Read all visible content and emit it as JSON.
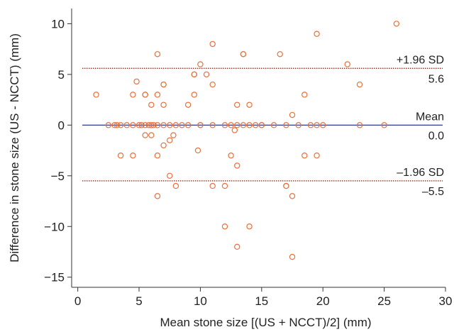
{
  "chart_data": {
    "type": "scatter",
    "xlabel": "Mean stone size [(US + NCCT)/2] (mm)",
    "ylabel": "Difference in stone size (US - NCCT) (mm)",
    "xlim": [
      -0.5,
      30
    ],
    "ylim": [
      -16,
      11.5
    ],
    "xticks": [
      0,
      5,
      10,
      15,
      20,
      25,
      30
    ],
    "yticks": [
      -15,
      -10,
      -5,
      0,
      5,
      10
    ],
    "grid": false,
    "marker": "open-circle",
    "colors": {
      "points": "#e8703a",
      "mean_line": "#2b3a8f",
      "sd_line": "#9b2d20",
      "axis": "#333333"
    },
    "reference_lines": [
      {
        "name": "upper",
        "y": 5.6,
        "label_top": "+1.96 SD",
        "label_bottom": "5.6",
        "color": "#9b2d20",
        "style": "dotted"
      },
      {
        "name": "mean",
        "y": 0.0,
        "label_top": "Mean",
        "label_bottom": "0.0",
        "color": "#2b3a8f",
        "style": "solid"
      },
      {
        "name": "lower",
        "y": -5.5,
        "label_top": "–1.96 SD",
        "label_bottom": "–5.5",
        "color": "#9b2d20",
        "style": "dotted"
      }
    ],
    "points": [
      [
        1.5,
        3
      ],
      [
        2.5,
        0
      ],
      [
        3,
        0
      ],
      [
        3.2,
        0
      ],
      [
        3.5,
        -3
      ],
      [
        3.5,
        0
      ],
      [
        4,
        0
      ],
      [
        4.5,
        3
      ],
      [
        4.5,
        -3
      ],
      [
        4.5,
        0
      ],
      [
        4.8,
        4.3
      ],
      [
        5,
        0
      ],
      [
        5.2,
        0
      ],
      [
        5.5,
        3
      ],
      [
        5.5,
        3
      ],
      [
        5.5,
        0
      ],
      [
        5.5,
        -1
      ],
      [
        5.8,
        0
      ],
      [
        6,
        2
      ],
      [
        6,
        0
      ],
      [
        6,
        -1
      ],
      [
        6.2,
        0
      ],
      [
        6.5,
        7
      ],
      [
        6.5,
        3
      ],
      [
        6.5,
        0
      ],
      [
        6.5,
        -3
      ],
      [
        6.5,
        -7
      ],
      [
        7,
        4
      ],
      [
        7,
        4
      ],
      [
        7,
        2
      ],
      [
        7,
        0
      ],
      [
        7,
        -2
      ],
      [
        7.5,
        0
      ],
      [
        7.5,
        -1.5
      ],
      [
        7.5,
        -5
      ],
      [
        7.8,
        -1
      ],
      [
        8,
        0
      ],
      [
        8,
        -6
      ],
      [
        8.5,
        0
      ],
      [
        9,
        0
      ],
      [
        9,
        2
      ],
      [
        9.5,
        5
      ],
      [
        9.5,
        5
      ],
      [
        9.5,
        3
      ],
      [
        9.8,
        -2.5
      ],
      [
        10,
        6
      ],
      [
        10,
        0
      ],
      [
        10,
        0
      ],
      [
        10.5,
        5
      ],
      [
        11,
        8
      ],
      [
        11,
        4
      ],
      [
        11,
        0
      ],
      [
        11,
        -6
      ],
      [
        12,
        0
      ],
      [
        12,
        -6
      ],
      [
        12,
        -10
      ],
      [
        12.5,
        0
      ],
      [
        12.5,
        -3
      ],
      [
        12.8,
        -0.5
      ],
      [
        13,
        2
      ],
      [
        13,
        0
      ],
      [
        13,
        -4
      ],
      [
        13,
        -12
      ],
      [
        13.5,
        7
      ],
      [
        13.5,
        7
      ],
      [
        13.5,
        0
      ],
      [
        14,
        2
      ],
      [
        14,
        0
      ],
      [
        14,
        -10
      ],
      [
        14.5,
        0
      ],
      [
        15,
        0
      ],
      [
        15,
        0
      ],
      [
        16,
        0
      ],
      [
        16.5,
        7
      ],
      [
        17,
        0
      ],
      [
        17,
        -6
      ],
      [
        17,
        -6
      ],
      [
        17.5,
        1
      ],
      [
        17.5,
        -7
      ],
      [
        17.5,
        -13
      ],
      [
        18,
        0
      ],
      [
        18.5,
        3
      ],
      [
        18.5,
        -3
      ],
      [
        19,
        0
      ],
      [
        19.5,
        9
      ],
      [
        19.5,
        0
      ],
      [
        19.5,
        -3
      ],
      [
        20,
        0
      ],
      [
        22,
        6
      ],
      [
        23,
        4
      ],
      [
        23,
        0
      ],
      [
        25,
        0
      ],
      [
        26,
        10
      ]
    ]
  }
}
